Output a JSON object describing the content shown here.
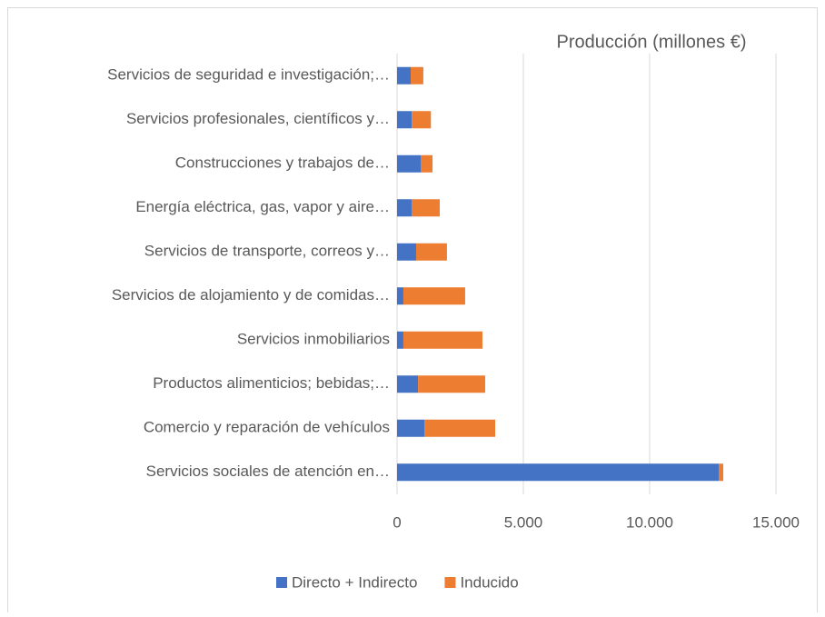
{
  "chart_data": {
    "type": "bar",
    "orientation": "horizontal",
    "stacked": true,
    "title": "Producción (millones €)",
    "categories": [
      "Servicios de seguridad e investigación;…",
      "Servicios profesionales, científicos y…",
      "Construcciones y trabajos de…",
      "Energía eléctrica, gas, vapor y aire…",
      "Servicios de transporte, correos y…",
      "Servicios de alojamiento y de comidas…",
      "Servicios inmobiliarios",
      "Productos alimenticios; bebidas;…",
      "Comercio y reparación de vehículos",
      "Servicios sociales de atención en…"
    ],
    "series": [
      {
        "name": "Directo + Indirecto",
        "color": "#4472c4",
        "values": [
          540,
          580,
          935,
          575,
          755,
          250,
          250,
          830,
          1080,
          12735
        ]
      },
      {
        "name": "Inducido",
        "color": "#ed7d31",
        "values": [
          500,
          760,
          470,
          1115,
          1220,
          2445,
          3130,
          2660,
          2805,
          180
        ]
      }
    ],
    "xlim": [
      0,
      15000
    ],
    "xticks": [
      0,
      {
        "value": 5000,
        "label": "5.000"
      },
      {
        "value": 10000,
        "label": "10.000"
      },
      {
        "value": 15000,
        "label": "15.000"
      }
    ],
    "grid": true,
    "legend": "bottom"
  }
}
